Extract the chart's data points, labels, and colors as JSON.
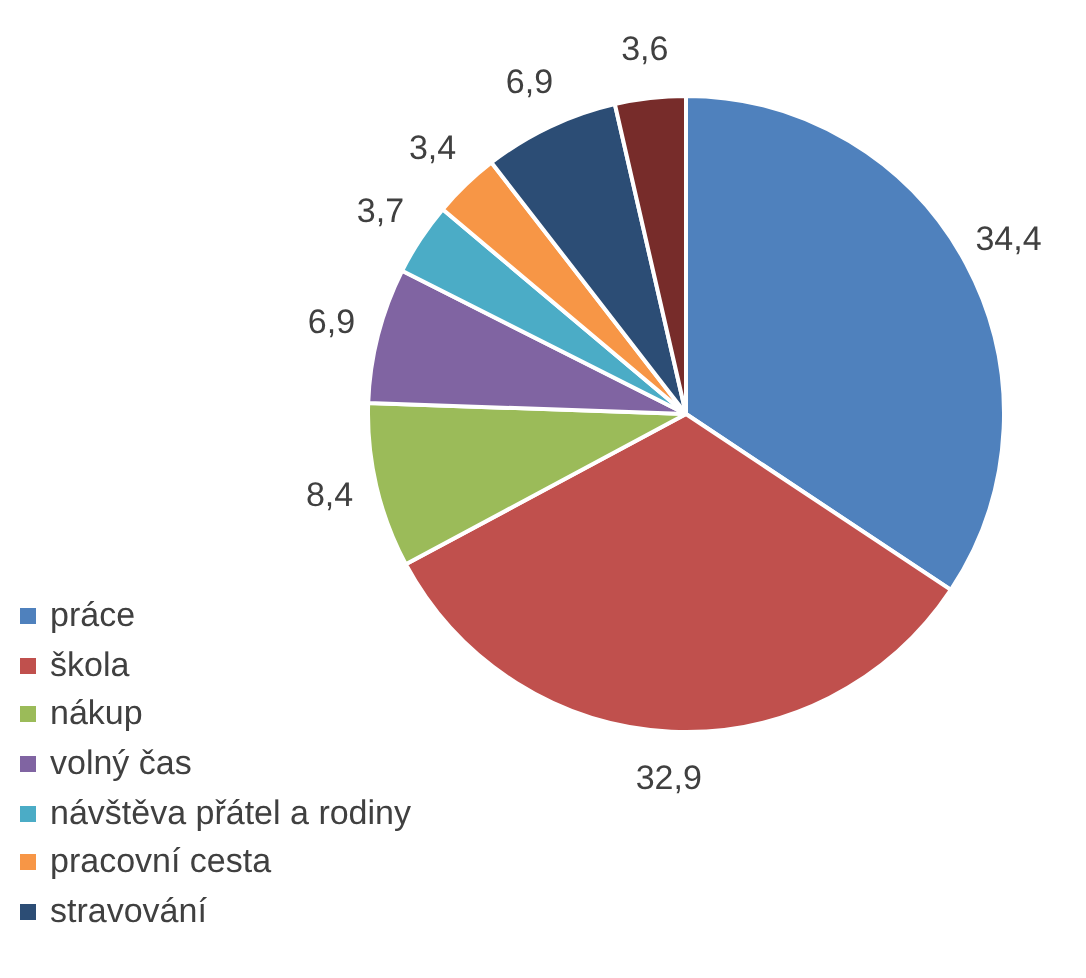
{
  "chart_data": {
    "type": "pie",
    "categories": [
      "práce",
      "škola",
      "nákup",
      "volný čas",
      "návštěva přátel a rodiny",
      "pracovní cesta",
      "stravování",
      null
    ],
    "values": [
      34.4,
      32.9,
      8.4,
      6.9,
      3.7,
      3.4,
      6.9,
      3.6
    ],
    "value_labels": [
      "34,4",
      "32,9",
      "8,4",
      "6,9",
      "3,7",
      "3,4",
      "6,9",
      "3,6"
    ],
    "colors": [
      "#4f81bd",
      "#c0504d",
      "#9bbb59",
      "#8064a2",
      "#4bacc6",
      "#f79646",
      "#2c4d75",
      "#772c2a"
    ],
    "legend": "bottom left"
  }
}
